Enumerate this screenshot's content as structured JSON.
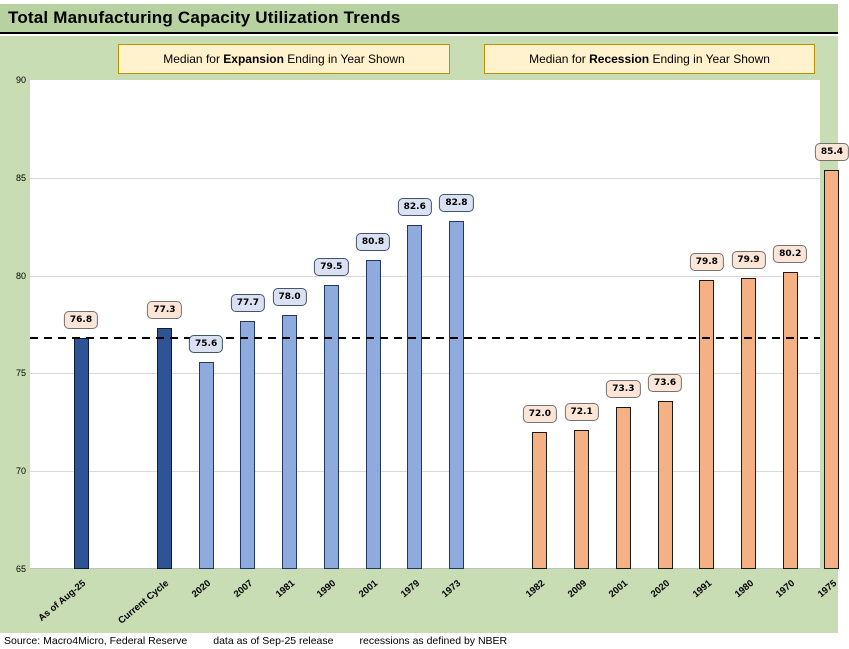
{
  "title": "Total Manufacturing Capacity Utilization Trends",
  "header_boxes": {
    "expansion": {
      "prefix": "Median for ",
      "bold": "Expansion",
      "suffix": " Ending in Year Shown"
    },
    "recession": {
      "prefix": "Median for ",
      "bold": "Recession",
      "suffix": " Ending in Year Shown"
    }
  },
  "footer": {
    "source": "Source: Macro4Micro, Federal Reserve",
    "data_as_of": "data as of Sep-25 release",
    "recessions_note": "recessions as defined by NBER"
  },
  "colors": {
    "page_green": "#c9ddb5",
    "title_band_green": "#b7d1a0",
    "dark_blue_bar": "#2f5496",
    "light_blue_bar": "#8faadc",
    "orange_bar": "#f4b183",
    "peach_label_bg": "#fbe5d6",
    "blue_label_bg": "#d9e1f2",
    "header_box_bg": "#fff2cc",
    "header_box_border": "#bf9000",
    "gridline": "#d9d9d9",
    "reference_line": "#000000"
  },
  "chart_data": {
    "type": "bar",
    "title": "Total Manufacturing Capacity Utilization Trends",
    "ylabel": "",
    "xlabel": "",
    "ylim": [
      65,
      90
    ],
    "yticks": [
      65,
      70,
      75,
      80,
      85,
      90
    ],
    "grid": true,
    "reference_line_value": 76.8,
    "value_label_decimals": 1,
    "bars": [
      {
        "label": "As of Aug-25",
        "value": 76.8,
        "slot": 0,
        "style": "dark_blue",
        "label_style": "peach",
        "group": "expansion"
      },
      {
        "label": "Current Cycle",
        "value": 77.3,
        "slot": 2,
        "style": "dark_blue",
        "label_style": "peach",
        "group": "expansion"
      },
      {
        "label": "2020",
        "value": 75.6,
        "slot": 3,
        "style": "light_blue",
        "label_style": "blue",
        "group": "expansion"
      },
      {
        "label": "2007",
        "value": 77.7,
        "slot": 4,
        "style": "light_blue",
        "label_style": "blue",
        "group": "expansion"
      },
      {
        "label": "1981",
        "value": 78.0,
        "slot": 5,
        "style": "light_blue",
        "label_style": "blue",
        "group": "expansion"
      },
      {
        "label": "1990",
        "value": 79.5,
        "slot": 6,
        "style": "light_blue",
        "label_style": "blue",
        "group": "expansion"
      },
      {
        "label": "2001",
        "value": 80.8,
        "slot": 7,
        "style": "light_blue",
        "label_style": "blue",
        "group": "expansion"
      },
      {
        "label": "1979",
        "value": 82.6,
        "slot": 8,
        "style": "light_blue",
        "label_style": "blue",
        "group": "expansion"
      },
      {
        "label": "1973",
        "value": 82.8,
        "slot": 9,
        "style": "light_blue",
        "label_style": "blue",
        "group": "expansion"
      },
      {
        "label": "1982",
        "value": 72.0,
        "slot": 11,
        "style": "orange",
        "label_style": "peach",
        "group": "recession"
      },
      {
        "label": "2009",
        "value": 72.1,
        "slot": 12,
        "style": "orange",
        "label_style": "peach",
        "group": "recession"
      },
      {
        "label": "2001",
        "value": 73.3,
        "slot": 13,
        "style": "orange",
        "label_style": "peach",
        "group": "recession"
      },
      {
        "label": "2020",
        "value": 73.6,
        "slot": 14,
        "style": "orange",
        "label_style": "peach",
        "group": "recession"
      },
      {
        "label": "1991",
        "value": 79.8,
        "slot": 15,
        "style": "orange",
        "label_style": "peach",
        "group": "recession"
      },
      {
        "label": "1980",
        "value": 79.9,
        "slot": 16,
        "style": "orange",
        "label_style": "peach",
        "group": "recession"
      },
      {
        "label": "1970",
        "value": 80.2,
        "slot": 17,
        "style": "orange",
        "label_style": "peach",
        "group": "recession"
      },
      {
        "label": "1975",
        "value": 85.4,
        "slot": 18,
        "style": "orange",
        "label_style": "peach",
        "group": "recession"
      }
    ]
  }
}
